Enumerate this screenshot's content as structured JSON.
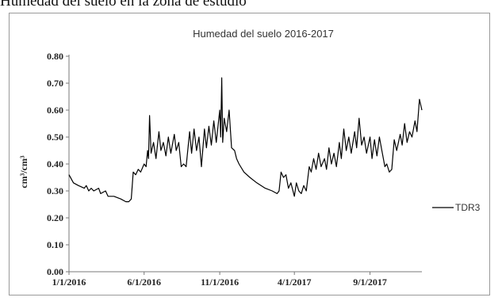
{
  "caption": "Humedad del suelo en la zona de estudio",
  "chart_data": {
    "type": "line",
    "title": "Humedad del suelo 2016-2017",
    "xlabel": "",
    "ylabel": "cm³/cm³",
    "ylim": [
      0,
      0.8
    ],
    "yticks": [
      "0.00",
      "0.10",
      "0.20",
      "0.30",
      "0.40",
      "0.50",
      "0.60",
      "0.70",
      "0.80"
    ],
    "xlim": [
      "2016-01-01",
      "2017-12-15"
    ],
    "xticks": [
      {
        "date": "2016-01-01",
        "label": "1/1/2016"
      },
      {
        "date": "2016-06-01",
        "label": "6/1/2016"
      },
      {
        "date": "2016-11-01",
        "label": "11/1/2016"
      },
      {
        "date": "2017-04-01",
        "label": "4/1/2017"
      },
      {
        "date": "2017-09-01",
        "label": "9/1/2017"
      }
    ],
    "grid": false,
    "legend_position": "right",
    "series": [
      {
        "name": "TDR3",
        "color": "#000000",
        "points": [
          [
            "2016-01-01",
            0.36
          ],
          [
            "2016-01-10",
            0.33
          ],
          [
            "2016-01-20",
            0.32
          ],
          [
            "2016-02-01",
            0.31
          ],
          [
            "2016-02-05",
            0.32
          ],
          [
            "2016-02-10",
            0.3
          ],
          [
            "2016-02-15",
            0.31
          ],
          [
            "2016-02-20",
            0.3
          ],
          [
            "2016-03-01",
            0.31
          ],
          [
            "2016-03-05",
            0.29
          ],
          [
            "2016-03-15",
            0.3
          ],
          [
            "2016-03-20",
            0.28
          ],
          [
            "2016-04-01",
            0.28
          ],
          [
            "2016-04-15",
            0.27
          ],
          [
            "2016-04-25",
            0.26
          ],
          [
            "2016-05-01",
            0.26
          ],
          [
            "2016-05-06",
            0.27
          ],
          [
            "2016-05-10",
            0.37
          ],
          [
            "2016-05-15",
            0.36
          ],
          [
            "2016-05-20",
            0.38
          ],
          [
            "2016-05-25",
            0.37
          ],
          [
            "2016-06-01",
            0.4
          ],
          [
            "2016-06-05",
            0.39
          ],
          [
            "2016-06-08",
            0.45
          ],
          [
            "2016-06-10",
            0.42
          ],
          [
            "2016-06-12",
            0.58
          ],
          [
            "2016-06-15",
            0.44
          ],
          [
            "2016-06-20",
            0.48
          ],
          [
            "2016-06-25",
            0.42
          ],
          [
            "2016-07-01",
            0.52
          ],
          [
            "2016-07-05",
            0.45
          ],
          [
            "2016-07-10",
            0.48
          ],
          [
            "2016-07-15",
            0.43
          ],
          [
            "2016-07-20",
            0.5
          ],
          [
            "2016-07-25",
            0.44
          ],
          [
            "2016-08-01",
            0.51
          ],
          [
            "2016-08-05",
            0.45
          ],
          [
            "2016-08-10",
            0.48
          ],
          [
            "2016-08-15",
            0.39
          ],
          [
            "2016-08-20",
            0.4
          ],
          [
            "2016-08-25",
            0.39
          ],
          [
            "2016-09-01",
            0.52
          ],
          [
            "2016-09-05",
            0.44
          ],
          [
            "2016-09-10",
            0.53
          ],
          [
            "2016-09-15",
            0.45
          ],
          [
            "2016-09-20",
            0.5
          ],
          [
            "2016-09-25",
            0.39
          ],
          [
            "2016-10-01",
            0.53
          ],
          [
            "2016-10-05",
            0.46
          ],
          [
            "2016-10-10",
            0.54
          ],
          [
            "2016-10-15",
            0.47
          ],
          [
            "2016-10-20",
            0.56
          ],
          [
            "2016-10-25",
            0.48
          ],
          [
            "2016-11-01",
            0.6
          ],
          [
            "2016-11-03",
            0.5
          ],
          [
            "2016-11-05",
            0.72
          ],
          [
            "2016-11-07",
            0.48
          ],
          [
            "2016-11-10",
            0.57
          ],
          [
            "2016-11-15",
            0.52
          ],
          [
            "2016-11-20",
            0.6
          ],
          [
            "2016-11-25",
            0.46
          ],
          [
            "2016-12-01",
            0.45
          ],
          [
            "2016-12-05",
            0.42
          ],
          [
            "2016-12-10",
            0.4
          ],
          [
            "2016-12-20",
            0.37
          ],
          [
            "2017-01-01",
            0.35
          ],
          [
            "2017-01-15",
            0.33
          ],
          [
            "2017-02-01",
            0.31
          ],
          [
            "2017-02-15",
            0.3
          ],
          [
            "2017-02-25",
            0.29
          ],
          [
            "2017-03-01",
            0.3
          ],
          [
            "2017-03-05",
            0.37
          ],
          [
            "2017-03-10",
            0.35
          ],
          [
            "2017-03-15",
            0.36
          ],
          [
            "2017-03-20",
            0.31
          ],
          [
            "2017-03-25",
            0.33
          ],
          [
            "2017-04-01",
            0.28
          ],
          [
            "2017-04-05",
            0.33
          ],
          [
            "2017-04-10",
            0.3
          ],
          [
            "2017-04-15",
            0.29
          ],
          [
            "2017-04-20",
            0.32
          ],
          [
            "2017-04-25",
            0.3
          ],
          [
            "2017-05-01",
            0.39
          ],
          [
            "2017-05-05",
            0.37
          ],
          [
            "2017-05-10",
            0.42
          ],
          [
            "2017-05-15",
            0.38
          ],
          [
            "2017-05-20",
            0.44
          ],
          [
            "2017-05-25",
            0.39
          ],
          [
            "2017-06-01",
            0.42
          ],
          [
            "2017-06-05",
            0.38
          ],
          [
            "2017-06-10",
            0.46
          ],
          [
            "2017-06-15",
            0.4
          ],
          [
            "2017-06-20",
            0.44
          ],
          [
            "2017-06-25",
            0.39
          ],
          [
            "2017-07-01",
            0.48
          ],
          [
            "2017-07-05",
            0.42
          ],
          [
            "2017-07-10",
            0.53
          ],
          [
            "2017-07-15",
            0.45
          ],
          [
            "2017-07-20",
            0.5
          ],
          [
            "2017-07-25",
            0.44
          ],
          [
            "2017-08-01",
            0.52
          ],
          [
            "2017-08-05",
            0.46
          ],
          [
            "2017-08-10",
            0.57
          ],
          [
            "2017-08-15",
            0.47
          ],
          [
            "2017-08-20",
            0.5
          ],
          [
            "2017-08-25",
            0.44
          ],
          [
            "2017-09-01",
            0.5
          ],
          [
            "2017-09-05",
            0.42
          ],
          [
            "2017-09-10",
            0.49
          ],
          [
            "2017-09-15",
            0.43
          ],
          [
            "2017-09-20",
            0.5
          ],
          [
            "2017-09-25",
            0.45
          ],
          [
            "2017-10-01",
            0.39
          ],
          [
            "2017-10-05",
            0.4
          ],
          [
            "2017-10-10",
            0.37
          ],
          [
            "2017-10-15",
            0.38
          ],
          [
            "2017-10-20",
            0.49
          ],
          [
            "2017-10-25",
            0.45
          ],
          [
            "2017-11-01",
            0.51
          ],
          [
            "2017-11-05",
            0.47
          ],
          [
            "2017-11-10",
            0.55
          ],
          [
            "2017-11-15",
            0.48
          ],
          [
            "2017-11-20",
            0.52
          ],
          [
            "2017-11-25",
            0.5
          ],
          [
            "2017-12-01",
            0.56
          ],
          [
            "2017-12-05",
            0.52
          ],
          [
            "2017-12-10",
            0.64
          ],
          [
            "2017-12-15",
            0.6
          ]
        ]
      }
    ]
  }
}
